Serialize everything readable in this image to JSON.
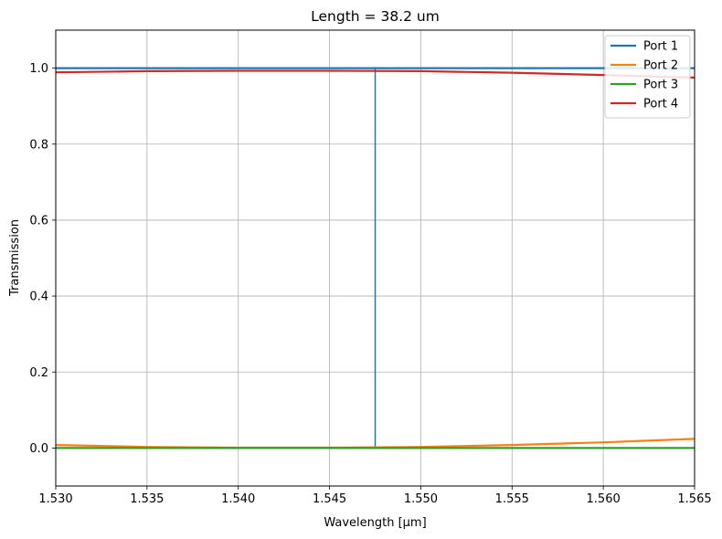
{
  "chart_data": {
    "type": "line",
    "title": "Length = 38.2 um",
    "xlabel": "Wavelength [μm]",
    "ylabel": "Transmission",
    "xlim": [
      1.53,
      1.565
    ],
    "ylim": [
      -0.1,
      1.1
    ],
    "x_ticks": [
      "1.530",
      "1.535",
      "1.540",
      "1.545",
      "1.550",
      "1.555",
      "1.560",
      "1.565"
    ],
    "x_tick_values": [
      1.53,
      1.535,
      1.54,
      1.545,
      1.55,
      1.555,
      1.56,
      1.565
    ],
    "y_ticks": [
      "0.0",
      "0.2",
      "0.4",
      "0.6",
      "0.8",
      "1.0"
    ],
    "y_tick_values": [
      0.0,
      0.2,
      0.4,
      0.6,
      0.8,
      1.0
    ],
    "grid": true,
    "legend_position": "top-right",
    "series": [
      {
        "name": "Port 1",
        "color": "#1f77b4",
        "x": [
          1.53,
          1.535,
          1.54,
          1.545,
          1.55,
          1.555,
          1.56,
          1.565
        ],
        "y": [
          1.0,
          1.0,
          1.0,
          1.0,
          1.0,
          1.0,
          1.0,
          1.0
        ]
      },
      {
        "name": "Port 2",
        "color": "#ff7f0e",
        "x": [
          1.53,
          1.535,
          1.54,
          1.545,
          1.55,
          1.555,
          1.56,
          1.565
        ],
        "y": [
          0.008,
          0.003,
          0.001,
          0.001,
          0.003,
          0.008,
          0.015,
          0.024
        ]
      },
      {
        "name": "Port 3",
        "color": "#2ca02c",
        "x": [
          1.53,
          1.535,
          1.54,
          1.545,
          1.55,
          1.555,
          1.56,
          1.565
        ],
        "y": [
          0.0,
          0.0,
          0.0,
          0.0,
          0.0,
          0.0,
          0.0,
          0.0
        ]
      },
      {
        "name": "Port 4",
        "color": "#d62728",
        "x": [
          1.53,
          1.535,
          1.54,
          1.545,
          1.55,
          1.555,
          1.56,
          1.565
        ],
        "y": [
          0.989,
          0.992,
          0.993,
          0.993,
          0.992,
          0.988,
          0.982,
          0.975
        ]
      }
    ],
    "annotations": [
      {
        "type": "vertical-line",
        "color": "#1f77b4",
        "x": 1.5475,
        "y_range": [
          0.0,
          1.0
        ]
      }
    ]
  }
}
